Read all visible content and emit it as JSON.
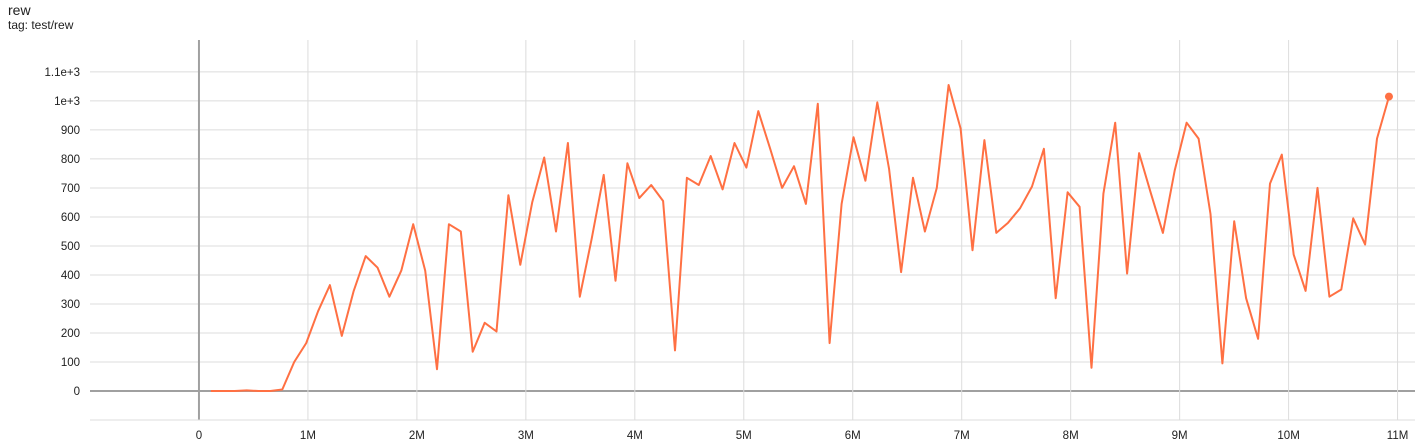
{
  "chart_data": {
    "type": "line",
    "title": "rew",
    "subtitle": "tag: test/rew",
    "xlabel": "",
    "ylabel": "",
    "xlim": [
      -1000000,
      11160000
    ],
    "ylim": [
      -100,
      1210
    ],
    "grid": true,
    "color": "#ff7043",
    "x_ticks": [
      0,
      1000000,
      2000000,
      3000000,
      4000000,
      5000000,
      6000000,
      7000000,
      8000000,
      9000000,
      10000000,
      11000000
    ],
    "x_tick_labels": [
      "0",
      "1M",
      "2M",
      "3M",
      "4M",
      "5M",
      "6M",
      "7M",
      "8M",
      "9M",
      "10M",
      "11M"
    ],
    "y_ticks": [
      0,
      100,
      200,
      300,
      400,
      500,
      600,
      700,
      800,
      900,
      1000,
      1100
    ],
    "y_tick_labels": [
      "0",
      "100",
      "200",
      "300",
      "400",
      "500",
      "600",
      "700",
      "800",
      "900",
      "1e+3",
      "1.1e+3"
    ],
    "series": [
      {
        "x_millions": [
          0.11,
          0.219,
          0.328,
          0.438,
          0.547,
          0.656,
          0.765,
          0.874,
          0.984,
          1.093,
          1.202,
          1.311,
          1.42,
          1.53,
          1.639,
          1.748,
          1.857,
          1.966,
          2.076,
          2.185,
          2.294,
          2.403,
          2.512,
          2.622,
          2.731,
          2.84,
          2.949,
          3.058,
          3.168,
          3.277,
          3.386,
          3.495,
          3.604,
          3.714,
          3.823,
          3.932,
          4.041,
          4.15,
          4.26,
          4.369,
          4.478,
          4.587,
          4.696,
          4.806,
          4.915,
          5.024,
          5.133,
          5.242,
          5.352,
          5.461,
          5.57,
          5.679,
          5.788,
          5.898,
          6.007,
          6.116,
          6.225,
          6.334,
          6.444,
          6.553,
          6.662,
          6.771,
          6.88,
          6.99,
          7.099,
          7.208,
          7.317,
          7.426,
          7.536,
          7.645,
          7.754,
          7.863,
          7.972,
          8.082,
          8.191,
          8.3,
          8.409,
          8.518,
          8.628,
          8.737,
          8.846,
          8.955,
          9.064,
          9.174,
          9.283,
          9.392,
          9.501,
          9.61,
          9.72,
          9.829,
          9.938,
          10.047,
          10.156,
          10.265,
          10.374,
          10.484,
          10.593,
          10.702,
          10.811,
          10.921
        ],
        "y": [
          0,
          0,
          0,
          2,
          0,
          0,
          5,
          100,
          165,
          275,
          365,
          190,
          345,
          465,
          425,
          325,
          415,
          575,
          415,
          75,
          575,
          550,
          135,
          235,
          205,
          675,
          435,
          650,
          805,
          550,
          855,
          325,
          525,
          745,
          380,
          785,
          665,
          710,
          655,
          140,
          735,
          710,
          810,
          695,
          855,
          770,
          965,
          835,
          700,
          775,
          645,
          990,
          165,
          645,
          875,
          725,
          995,
          765,
          410,
          735,
          550,
          700,
          1055,
          905,
          485,
          865,
          545,
          580,
          630,
          705,
          835,
          320,
          685,
          635,
          80,
          680,
          925,
          405,
          820,
          680,
          545,
          760,
          925,
          870,
          610,
          95,
          585,
          320,
          180,
          715,
          815,
          470,
          345,
          700,
          325,
          350,
          595,
          505,
          870,
          1015
        ]
      }
    ]
  }
}
